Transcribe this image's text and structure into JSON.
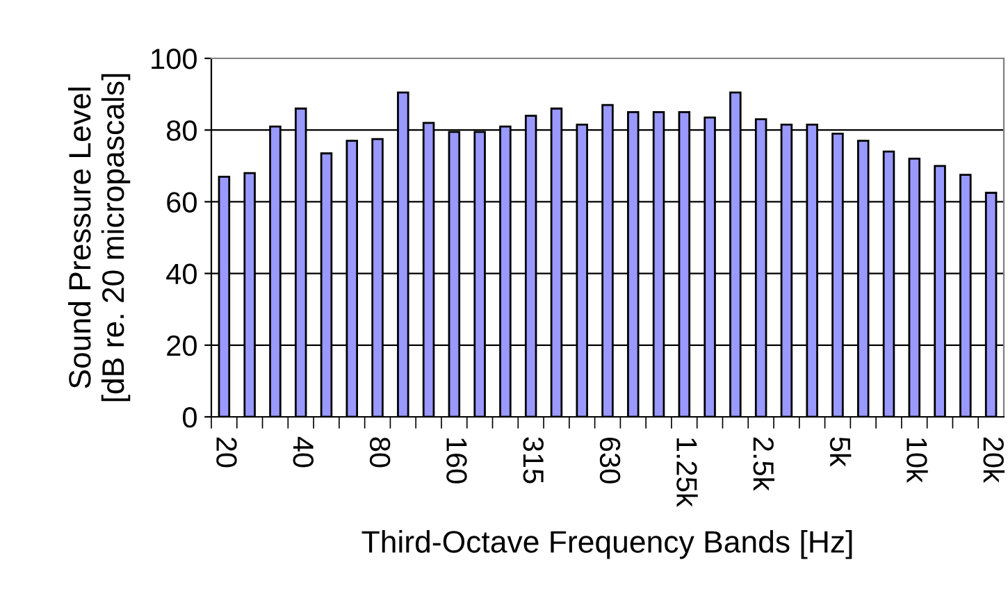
{
  "chart_data": {
    "type": "bar",
    "xlabel": "Third-Octave Frequency Bands [Hz]",
    "ylabel": "Sound Pressure Level\n[dB re. 20 micropascals]",
    "categories": [
      "20",
      null,
      null,
      "40",
      null,
      null,
      "80",
      null,
      null,
      "160",
      null,
      null,
      "315",
      null,
      null,
      "630",
      null,
      null,
      "1.25k",
      null,
      null,
      "2.5k",
      null,
      null,
      "5k",
      null,
      null,
      "10k",
      null,
      null,
      "20k"
    ],
    "values": [
      67,
      68,
      81,
      86,
      73.5,
      77,
      77.5,
      90.5,
      82,
      79.5,
      79.5,
      81,
      84,
      86,
      81.5,
      87,
      85,
      85,
      85,
      83.5,
      90.5,
      83,
      81.5,
      81.5,
      79,
      77,
      74,
      72,
      70,
      67.5,
      62.5
    ],
    "color": "#9999ff",
    "ylim": [
      0,
      100
    ],
    "yticks": [
      0,
      20,
      40,
      60,
      80,
      100
    ],
    "grid": "y"
  }
}
